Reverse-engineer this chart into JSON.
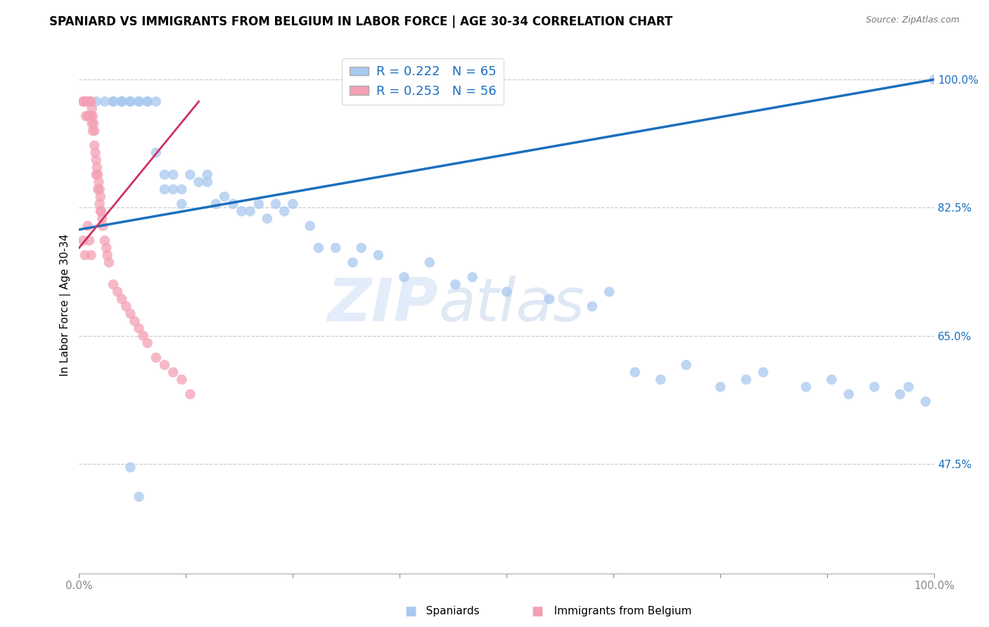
{
  "title": "SPANIARD VS IMMIGRANTS FROM BELGIUM IN LABOR FORCE | AGE 30-34 CORRELATION CHART",
  "source": "Source: ZipAtlas.com",
  "ylabel": "In Labor Force | Age 30-34",
  "r_blue": 0.222,
  "n_blue": 65,
  "r_pink": 0.253,
  "n_pink": 56,
  "xlim": [
    0,
    1
  ],
  "ylim": [
    0.325,
    1.06
  ],
  "yticks": [
    0.475,
    0.65,
    0.825,
    1.0
  ],
  "ytick_labels": [
    "47.5%",
    "65.0%",
    "82.5%",
    "100.0%"
  ],
  "xticks": [
    0.0,
    0.125,
    0.25,
    0.375,
    0.5,
    0.625,
    0.75,
    0.875,
    1.0
  ],
  "xtick_labels": [
    "0.0%",
    "",
    "",
    "",
    "",
    "",
    "",
    "",
    "100.0%"
  ],
  "blue_color": "#a8c8f0",
  "pink_color": "#f4a0b5",
  "blue_line_color": "#1a6fbe",
  "pink_line_color": "#d03060",
  "watermark_color": "#ccddf5",
  "watermark": "ZIPatlas",
  "blue_scatter_x": [
    0.02,
    0.03,
    0.04,
    0.04,
    0.05,
    0.05,
    0.05,
    0.06,
    0.06,
    0.07,
    0.07,
    0.08,
    0.08,
    0.09,
    0.09,
    0.1,
    0.1,
    0.11,
    0.11,
    0.12,
    0.12,
    0.13,
    0.14,
    0.15,
    0.15,
    0.16,
    0.17,
    0.18,
    0.19,
    0.2,
    0.21,
    0.22,
    0.23,
    0.24,
    0.25,
    0.27,
    0.28,
    0.3,
    0.32,
    0.33,
    0.35,
    0.38,
    0.41,
    0.44,
    0.46,
    0.5,
    0.55,
    0.6,
    0.62,
    0.65,
    0.68,
    0.71,
    0.75,
    0.78,
    0.8,
    0.85,
    0.88,
    0.9,
    0.93,
    0.96,
    0.97,
    0.99,
    1.0,
    0.06,
    0.07
  ],
  "blue_scatter_y": [
    0.97,
    0.97,
    0.97,
    0.97,
    0.97,
    0.97,
    0.97,
    0.97,
    0.97,
    0.97,
    0.97,
    0.97,
    0.97,
    0.97,
    0.9,
    0.87,
    0.85,
    0.87,
    0.85,
    0.85,
    0.83,
    0.87,
    0.86,
    0.87,
    0.86,
    0.83,
    0.84,
    0.83,
    0.82,
    0.82,
    0.83,
    0.81,
    0.83,
    0.82,
    0.83,
    0.8,
    0.77,
    0.77,
    0.75,
    0.77,
    0.76,
    0.73,
    0.75,
    0.72,
    0.73,
    0.71,
    0.7,
    0.69,
    0.71,
    0.6,
    0.59,
    0.61,
    0.58,
    0.59,
    0.6,
    0.58,
    0.59,
    0.57,
    0.58,
    0.57,
    0.58,
    0.56,
    1.0,
    0.47,
    0.43
  ],
  "pink_scatter_x": [
    0.005,
    0.005,
    0.008,
    0.008,
    0.01,
    0.01,
    0.012,
    0.012,
    0.013,
    0.013,
    0.014,
    0.014,
    0.015,
    0.015,
    0.016,
    0.016,
    0.017,
    0.018,
    0.018,
    0.019,
    0.02,
    0.02,
    0.021,
    0.022,
    0.022,
    0.023,
    0.024,
    0.024,
    0.025,
    0.025,
    0.026,
    0.027,
    0.028,
    0.03,
    0.032,
    0.033,
    0.035,
    0.04,
    0.045,
    0.05,
    0.055,
    0.06,
    0.065,
    0.07,
    0.075,
    0.08,
    0.09,
    0.1,
    0.11,
    0.12,
    0.13,
    0.005,
    0.007,
    0.01,
    0.012,
    0.014
  ],
  "pink_scatter_y": [
    0.97,
    0.97,
    0.97,
    0.95,
    0.97,
    0.95,
    0.97,
    0.95,
    0.97,
    0.95,
    0.97,
    0.95,
    0.96,
    0.94,
    0.95,
    0.93,
    0.94,
    0.93,
    0.91,
    0.9,
    0.89,
    0.87,
    0.88,
    0.87,
    0.85,
    0.86,
    0.85,
    0.83,
    0.84,
    0.82,
    0.82,
    0.81,
    0.8,
    0.78,
    0.77,
    0.76,
    0.75,
    0.72,
    0.71,
    0.7,
    0.69,
    0.68,
    0.67,
    0.66,
    0.65,
    0.64,
    0.62,
    0.61,
    0.6,
    0.59,
    0.57,
    0.78,
    0.76,
    0.8,
    0.78,
    0.76
  ],
  "blue_trend_x": [
    0.0,
    1.0
  ],
  "blue_trend_y": [
    0.795,
    1.0
  ],
  "pink_trend_x": [
    0.0,
    0.14
  ],
  "pink_trend_y": [
    0.77,
    0.97
  ]
}
